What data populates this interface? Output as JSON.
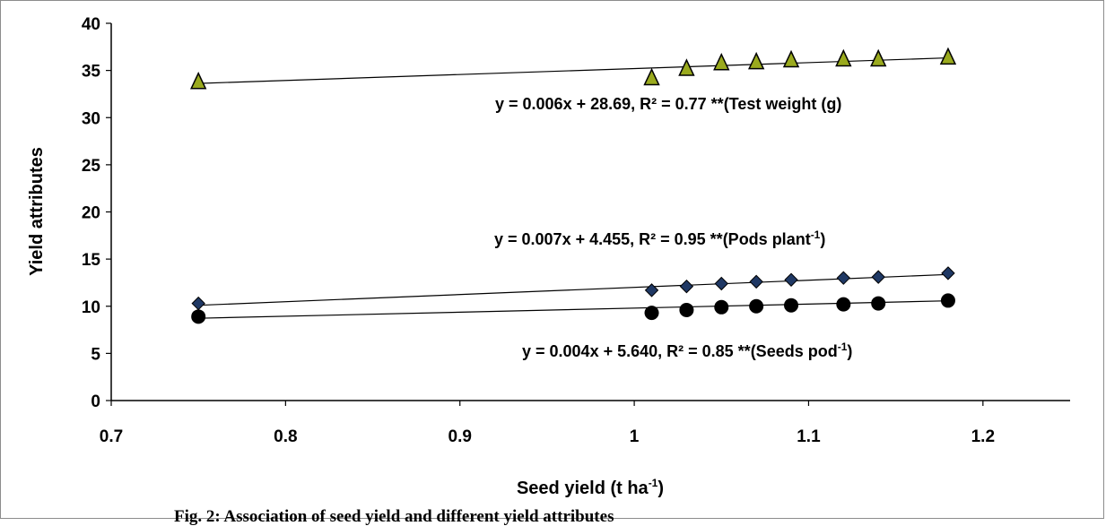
{
  "caption": "Fig. 2: Association of seed yield and different yield attributes",
  "chart_data": {
    "type": "scatter",
    "xlabel": {
      "main": "Seed yield  (t ha",
      "sup": "-1",
      "tail": ")"
    },
    "ylabel": "Yield attributes",
    "xlim": [
      0.7,
      1.25
    ],
    "ylim": [
      0,
      40
    ],
    "x_ticks": [
      "0.7",
      "0.8",
      "0.9",
      "1",
      "1.1",
      "1.2"
    ],
    "y_ticks": [
      "0",
      "5",
      "10",
      "15",
      "20",
      "25",
      "30",
      "35",
      "40"
    ],
    "grid": false,
    "series": [
      {
        "key": "test_weight",
        "marker": "triangle",
        "color": "#9aaa1e",
        "x": [
          0.75,
          1.01,
          1.03,
          1.05,
          1.07,
          1.09,
          1.12,
          1.14,
          1.18
        ],
        "y": [
          33.8,
          34.2,
          35.2,
          35.8,
          35.9,
          36.1,
          36.2,
          36.2,
          36.4
        ],
        "trend": {
          "slope": 6.3,
          "intercept": 28.9
        },
        "equation": {
          "main": "y = 0.006x + 28.69, R² = 0.77 **(Test weight (g)",
          "sup": "",
          "tail": ""
        }
      },
      {
        "key": "pods_plant",
        "marker": "diamond",
        "color": "#1f3864",
        "x": [
          0.75,
          1.01,
          1.03,
          1.05,
          1.07,
          1.09,
          1.12,
          1.14,
          1.18
        ],
        "y": [
          10.3,
          11.7,
          12.1,
          12.4,
          12.6,
          12.8,
          13.0,
          13.1,
          13.5
        ],
        "trend": {
          "slope": 7.6,
          "intercept": 4.4
        },
        "equation": {
          "main": "y = 0.007x + 4.455, R² = 0.95 **(Pods plant",
          "sup": "-1",
          "tail": ")"
        }
      },
      {
        "key": "seeds_pod",
        "marker": "circle",
        "color": "#000000",
        "x": [
          0.75,
          1.01,
          1.03,
          1.05,
          1.07,
          1.09,
          1.12,
          1.14,
          1.18
        ],
        "y": [
          8.9,
          9.3,
          9.6,
          9.9,
          10.0,
          10.1,
          10.2,
          10.3,
          10.6
        ],
        "trend": {
          "slope": 4.3,
          "intercept": 5.5
        },
        "equation": {
          "main": "y = 0.004x + 5.640, R² = 0.85 **(Seeds pod",
          "sup": "-1",
          "tail": ")"
        }
      }
    ]
  }
}
